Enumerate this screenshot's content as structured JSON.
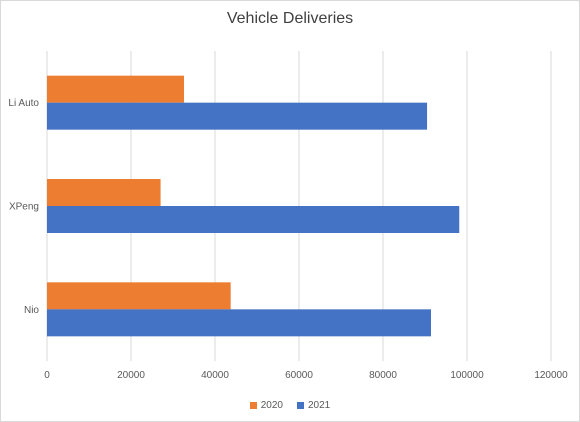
{
  "chart_data": {
    "type": "bar",
    "orientation": "horizontal",
    "title": "Vehicle Deliveries",
    "xlabel": "",
    "ylabel": "",
    "categories": [
      "Li Auto",
      "XPeng",
      "Nio"
    ],
    "series": [
      {
        "name": "2020",
        "color": "#ed7d31",
        "values": [
          32624,
          27041,
          43728
        ]
      },
      {
        "name": "2021",
        "color": "#4472c4",
        "values": [
          90491,
          98155,
          91429
        ]
      }
    ],
    "xlim": [
      0,
      120000
    ],
    "ticks": [
      0,
      20000,
      40000,
      60000,
      80000,
      100000,
      120000
    ],
    "tick_labels": [
      "0",
      "20000",
      "40000",
      "60000",
      "80000",
      "100000",
      "120000"
    ],
    "grid": "vertical",
    "legend_position": "bottom"
  }
}
